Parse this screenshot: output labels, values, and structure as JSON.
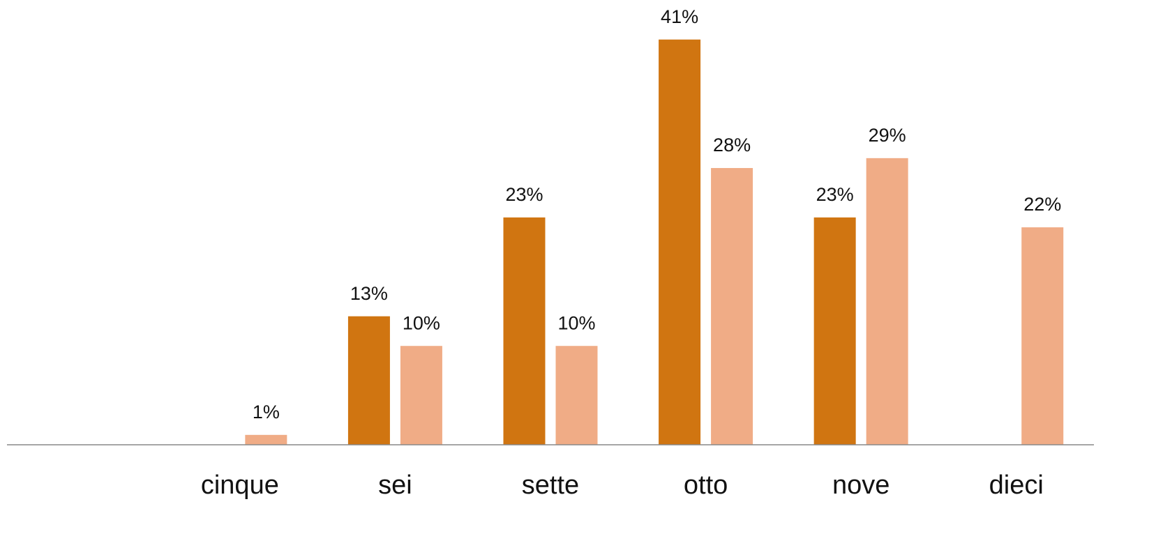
{
  "chart_data": {
    "type": "bar",
    "categories": [
      null,
      "cinque",
      "sei",
      "sette",
      "otto",
      "nove",
      "dieci"
    ],
    "series": [
      {
        "color": "#d07511",
        "values": [
          null,
          null,
          13,
          23,
          41,
          23,
          null
        ],
        "value_labels": [
          null,
          null,
          "13%",
          "23%",
          "41%",
          "23%",
          null
        ]
      },
      {
        "color": "#f0ac86",
        "values": [
          null,
          1,
          10,
          10,
          28,
          29,
          22
        ],
        "value_labels": [
          null,
          "1%",
          "10%",
          "10%",
          "28%",
          "29%",
          "22%"
        ]
      }
    ],
    "ylim": [
      0,
      45
    ],
    "grid": false
  }
}
